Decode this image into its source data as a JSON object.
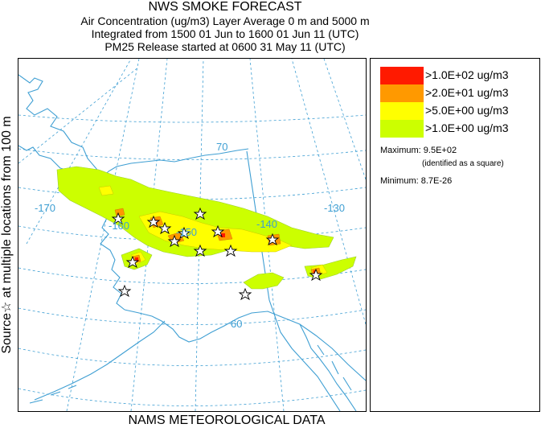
{
  "header": {
    "title": "NWS SMOKE FORECAST",
    "line2": "Air Concentration (ug/m3) Layer Average    0 m and  5000 m",
    "line3": "Integrated from 1500 01 Jun to 1600 01 Jun 11 (UTC)",
    "line4": "PM25 Release started at 0600 31 May 11 (UTC)"
  },
  "side_label": "Source☆   at multiple locations    from   100 m",
  "footer": "NAMS METEOROLOGICAL DATA",
  "map": {
    "graticule_labels": [
      "70",
      "-170",
      "-160",
      "-150",
      "-140",
      "-130",
      "60"
    ]
  },
  "legend": {
    "items": [
      {
        "label": ">1.0E+02 ug/m3",
        "color": "#ff1a00"
      },
      {
        "label": ">2.0E+01 ug/m3",
        "color": "#ff9900"
      },
      {
        "label": ">5.0E+00 ug/m3",
        "color": "#ffff00"
      },
      {
        "label": ">1.0E+00 ug/m3",
        "color": "#ccff00"
      }
    ],
    "maximum_label": "Maximum: 9.5E+02",
    "maximum_note": "(identified as a square)",
    "minimum_label": "Minimum: 8.7E-26"
  },
  "colors": {
    "coast": "#3f9fd3",
    "graticule": "#3f9fd3",
    "source_marker": "#000000"
  }
}
